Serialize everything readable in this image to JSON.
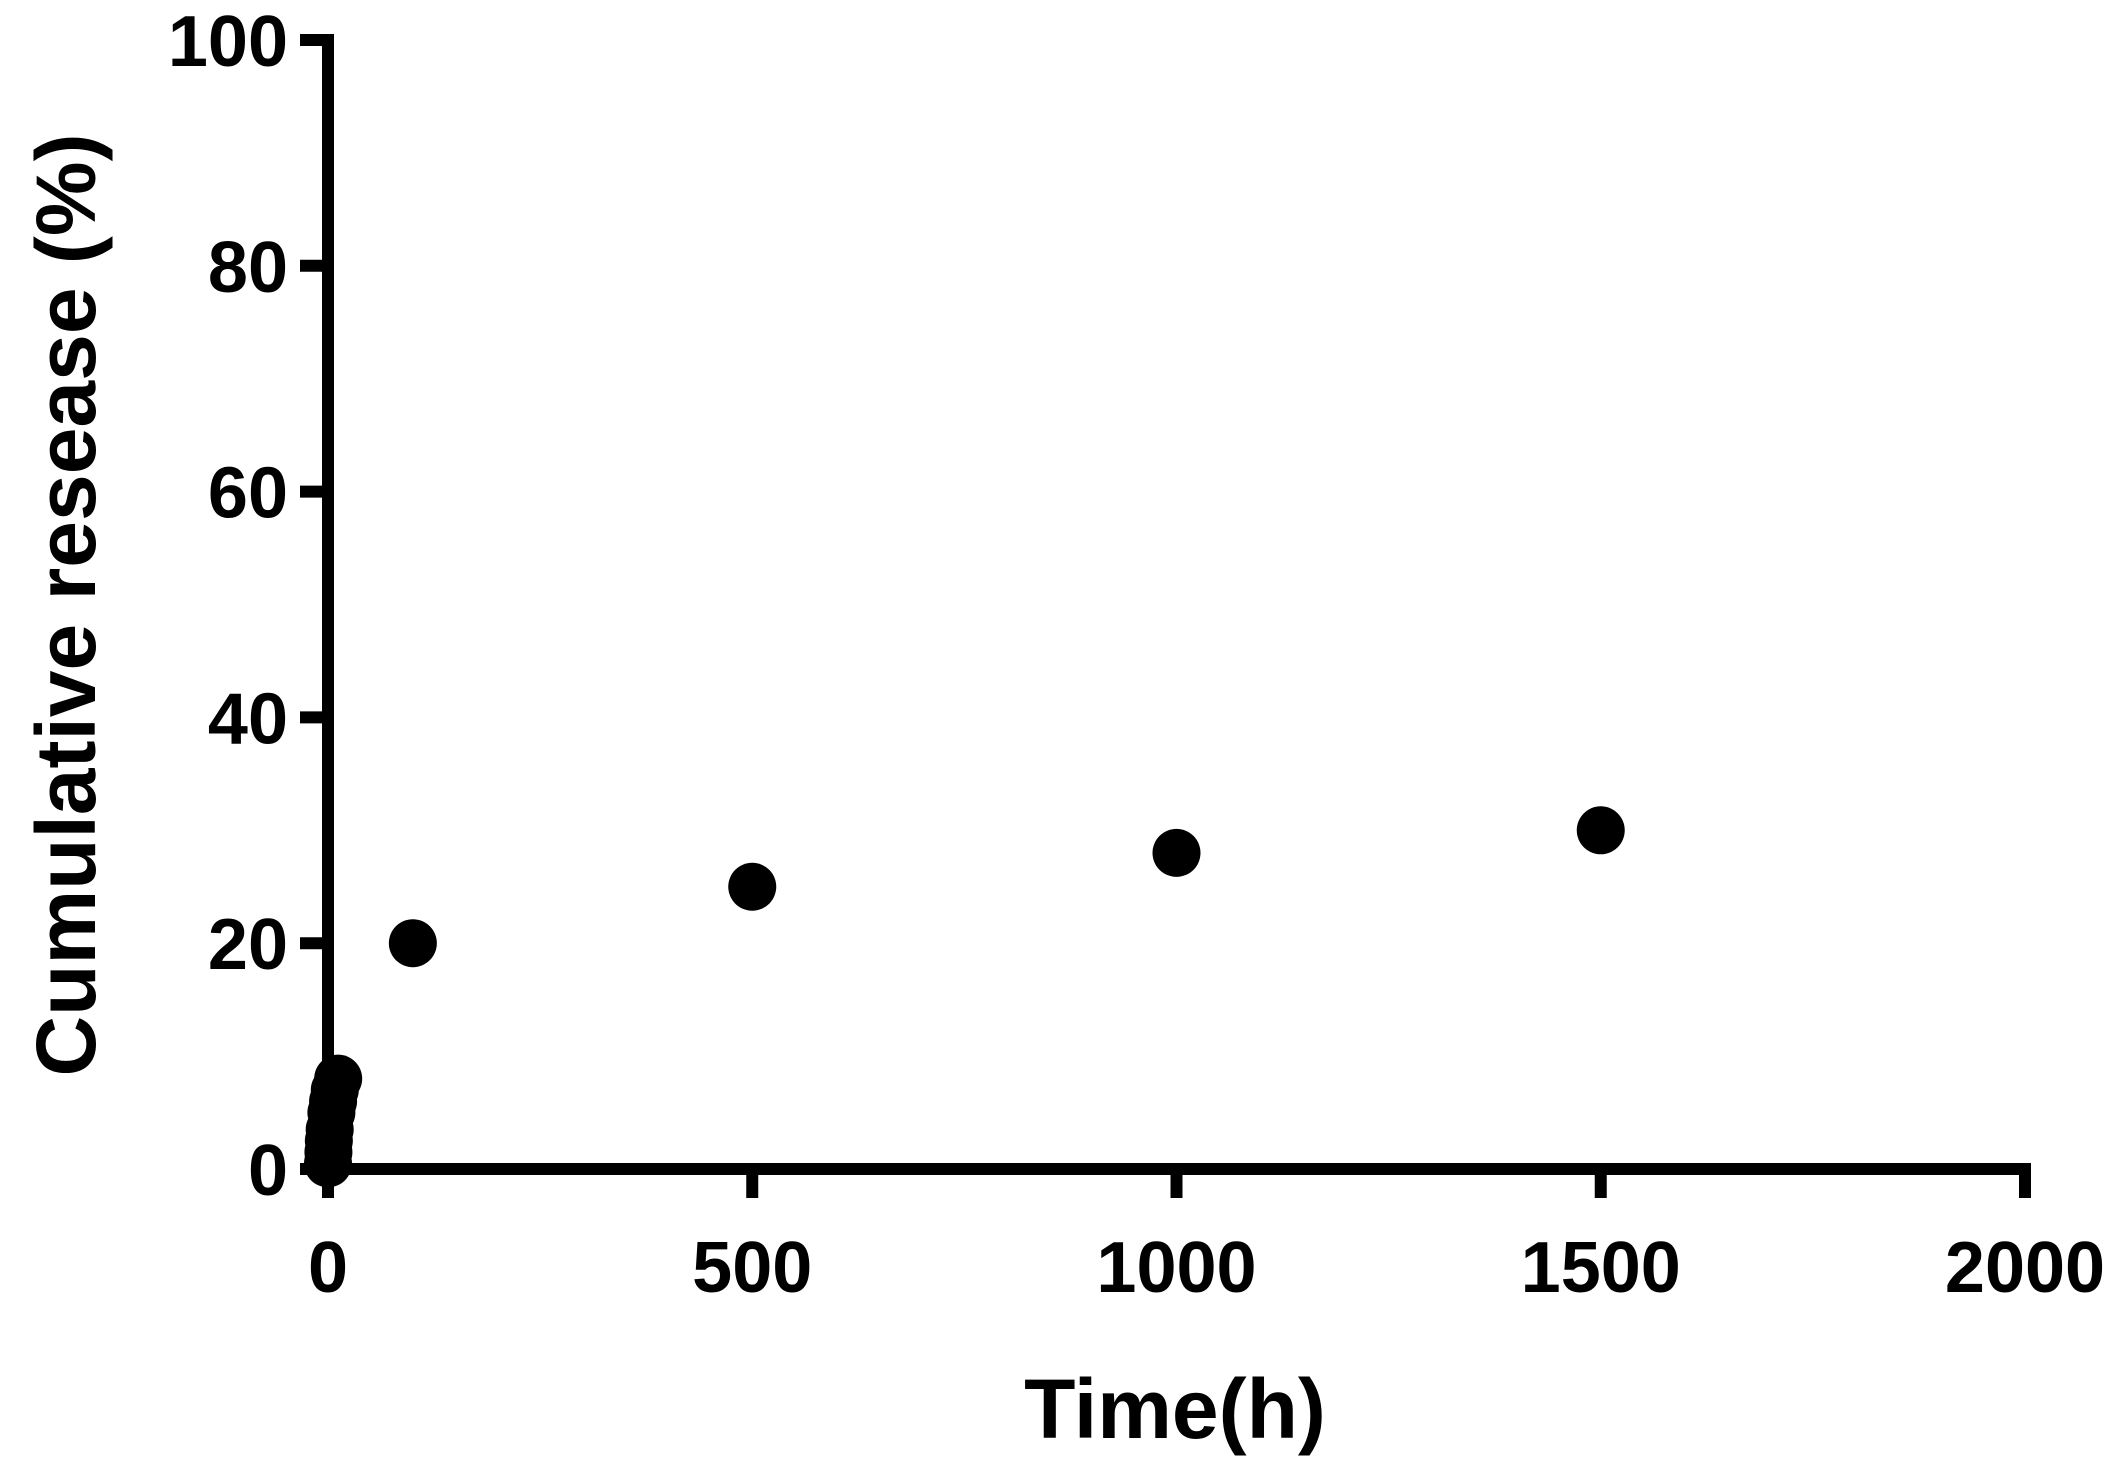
{
  "chart_data": {
    "type": "scatter",
    "title": "",
    "xlabel": "Time(h)",
    "ylabel": "Cumulative resease (%)",
    "xlim": [
      0,
      2000
    ],
    "ylim": [
      0,
      100
    ],
    "xticks": [
      "0",
      "500",
      "1000",
      "1500",
      "2000"
    ],
    "yticks": [
      "0",
      "20",
      "40",
      "60",
      "80",
      "100"
    ],
    "grid": false,
    "legend": "none",
    "marker_color": "#000000",
    "series": [
      {
        "x": [
          0,
          0.5,
          1,
          2,
          4,
          6,
          8,
          12,
          100,
          500,
          1000,
          1500
        ],
        "y": [
          0.5,
          1.5,
          2.5,
          3.5,
          5,
          6,
          7,
          8,
          20,
          25,
          28,
          30
        ]
      }
    ]
  }
}
